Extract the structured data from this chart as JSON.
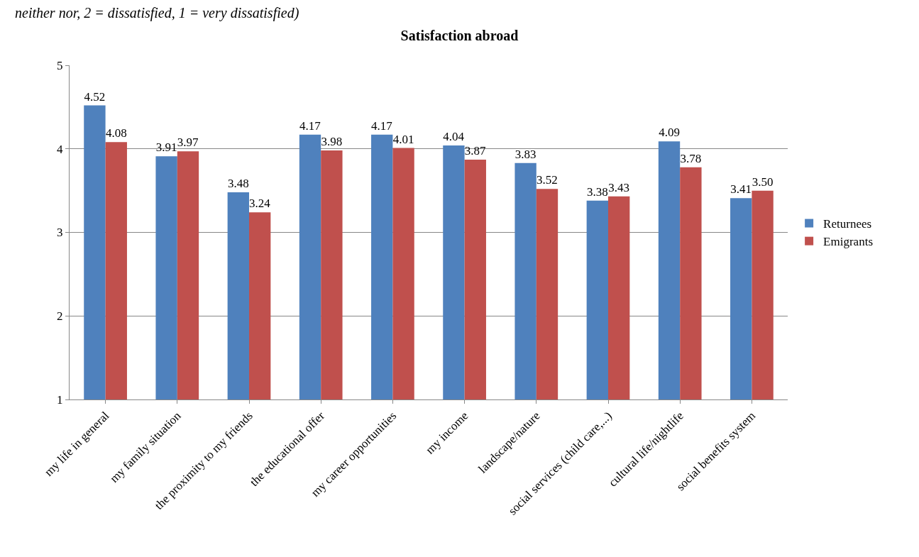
{
  "chart_data": {
    "type": "bar",
    "title": "Satisfaction abroad",
    "annotations": [
      "neither nor, 2 = dissatisfied, 1 = very dissatisfied)"
    ],
    "categories": [
      "my life in general",
      "my family situation",
      "the proximity to my friends",
      "the educational offer",
      "my career opportunities",
      "my income",
      "landscape/nature",
      "social services (child care,...)",
      "cultural life/nightlife",
      "social benefits system"
    ],
    "series": [
      {
        "name": "Returnees",
        "color": "#4f81bd",
        "values": [
          4.52,
          3.91,
          3.48,
          4.17,
          4.17,
          4.04,
          3.83,
          3.38,
          4.09,
          3.41
        ],
        "value_labels": [
          "4.52",
          "3.91",
          "3.48",
          "4.17",
          "4.17",
          "4.04",
          "3.83",
          "3.38",
          "4.09",
          "3.41"
        ]
      },
      {
        "name": "Emigrants",
        "color": "#c0504d",
        "values": [
          4.08,
          3.97,
          3.24,
          3.98,
          4.01,
          3.87,
          3.52,
          3.43,
          3.78,
          3.5
        ],
        "value_labels": [
          "4.08",
          "3.97",
          "3.24",
          "3.98",
          "4.01",
          "3.87",
          "3.52",
          "3.43",
          "3.78",
          "3.50"
        ]
      }
    ],
    "ylim": [
      1,
      5
    ],
    "yticks": [
      1,
      2,
      3,
      4,
      5
    ],
    "grid": "y",
    "legend": "right"
  }
}
